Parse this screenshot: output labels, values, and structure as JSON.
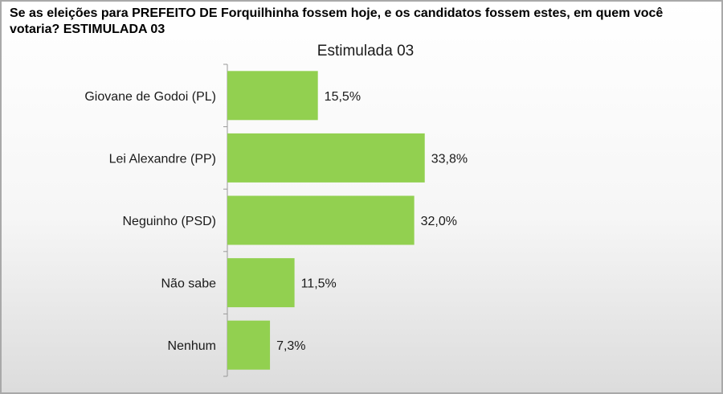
{
  "question": "Se as eleições para PREFEITO DE Forquilhinha fossem hoje, e os candidatos fossem estes, em quem você votaria? ESTIMULADA 03",
  "chart_data": {
    "type": "bar",
    "orientation": "horizontal",
    "title": "Estimulada 03",
    "categories": [
      "Giovane de Godoi (PL)",
      "Lei Alexandre (PP)",
      "Neguinho (PSD)",
      "Não sabe",
      "Nenhum"
    ],
    "values": [
      15.5,
      33.8,
      32.0,
      11.5,
      7.3
    ],
    "value_labels": [
      "15,5%",
      "33,8%",
      "32,0%",
      "11,5%",
      "7,3%"
    ],
    "xlim": [
      0,
      100
    ],
    "grid": false,
    "legend": "none",
    "bar_color": "#92d050"
  }
}
